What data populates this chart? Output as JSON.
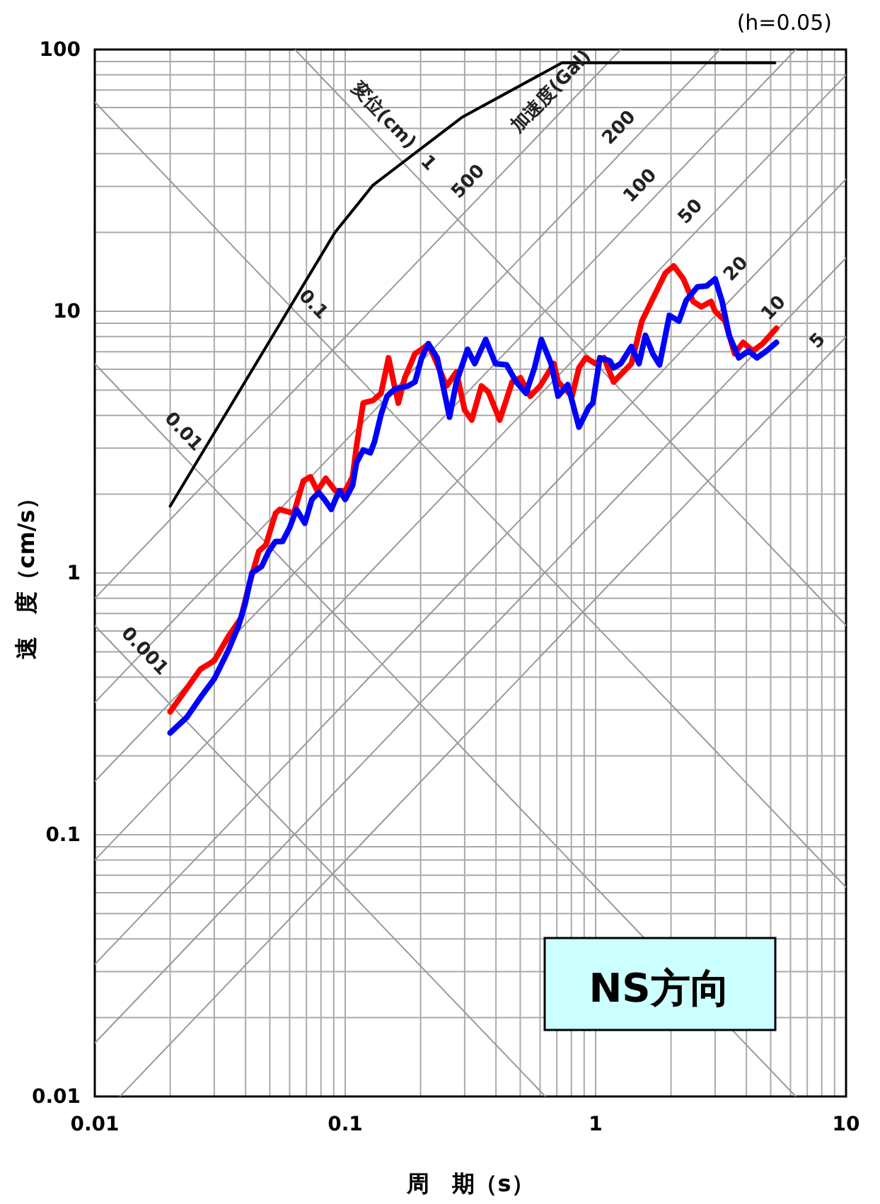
{
  "chart_data": {
    "type": "line",
    "xlabel": "周　期（s）",
    "ylabel": "速　度（cm/s）",
    "log": "xy",
    "grid": true,
    "xlim": [
      0.01,
      10
    ],
    "xticks": [
      0.01,
      0.1,
      1,
      10
    ],
    "ylim": [
      0.01,
      100
    ],
    "yticks": [
      0.01,
      0.1,
      1,
      10,
      100
    ],
    "series": [
      {
        "color": "#999999",
        "x": [
          0.01,
          0.63
        ],
        "values": [
          0.63,
          0.01
        ]
      },
      {
        "color": "#999999",
        "x": [
          0.01,
          6.3
        ],
        "values": [
          6.3,
          0.01
        ]
      },
      {
        "color": "#999999",
        "x": [
          0.01,
          10
        ],
        "values": [
          63,
          0.063
        ]
      },
      {
        "color": "#999999",
        "x": [
          0.063,
          10
        ],
        "values": [
          100,
          0.63
        ]
      },
      {
        "color": "#999999",
        "x": [
          0.01,
          1.26
        ],
        "values": [
          0.8,
          100
        ]
      },
      {
        "color": "#999999",
        "x": [
          0.01,
          3.14
        ],
        "values": [
          0.32,
          100
        ]
      },
      {
        "color": "#999999",
        "x": [
          0.01,
          6.3
        ],
        "values": [
          0.16,
          100
        ]
      },
      {
        "color": "#999999",
        "x": [
          0.01,
          10
        ],
        "values": [
          0.08,
          80
        ]
      },
      {
        "color": "#999999",
        "x": [
          0.01,
          10
        ],
        "values": [
          0.032,
          32
        ]
      },
      {
        "color": "#999999",
        "x": [
          0.01,
          10
        ],
        "values": [
          0.016,
          16
        ]
      },
      {
        "color": "#999999",
        "x": [
          0.0126,
          10
        ],
        "values": [
          0.01,
          8
        ]
      },
      {
        "color": "#000000",
        "x": [
          0.02,
          0.091,
          0.129,
          0.292,
          0.734,
          5.2
        ],
        "values": [
          1.8,
          20,
          30.3,
          55,
          89,
          89
        ]
      },
      {
        "color": "#ff0000",
        "x": [
          0.02,
          0.0264,
          0.03,
          0.0341,
          0.0383,
          0.0414,
          0.0452,
          0.0482,
          0.0527,
          0.0548,
          0.0623,
          0.0681,
          0.0726,
          0.0774,
          0.0836,
          0.0914,
          0.1,
          0.107,
          0.111,
          0.118,
          0.129,
          0.139,
          0.149,
          0.156,
          0.163,
          0.173,
          0.19,
          0.202,
          0.215,
          0.254,
          0.278,
          0.3,
          0.32,
          0.35,
          0.373,
          0.414,
          0.464,
          0.501,
          0.548,
          0.6,
          0.681,
          0.708,
          0.805,
          0.858,
          0.914,
          1.0,
          1.08,
          1.18,
          1.29,
          1.39,
          1.53,
          1.67,
          1.9,
          2.05,
          2.24,
          2.45,
          2.64,
          2.89,
          3.0,
          3.29,
          3.59,
          3.88,
          4.25,
          4.64,
          5.27
        ],
        "values": [
          0.295,
          0.429,
          0.462,
          0.571,
          0.671,
          0.906,
          1.21,
          1.28,
          1.69,
          1.75,
          1.69,
          2.25,
          2.33,
          2.06,
          2.3,
          2.06,
          2.06,
          2.33,
          3.06,
          4.46,
          4.56,
          4.86,
          6.64,
          5.37,
          4.46,
          5.57,
          6.89,
          7.15,
          7.51,
          5.18,
          5.86,
          4.19,
          3.84,
          5.18,
          4.92,
          3.84,
          5.37,
          5.57,
          4.74,
          5.18,
          6.31,
          5.37,
          4.74,
          6.08,
          6.64,
          6.31,
          6.64,
          5.37,
          5.86,
          6.31,
          9.17,
          10.9,
          14.0,
          14.9,
          13.3,
          10.9,
          10.4,
          10.9,
          10.0,
          9.17,
          6.89,
          7.6,
          7.06,
          7.51,
          8.61
        ]
      },
      {
        "color": "#0000ff",
        "x": [
          0.02,
          0.0233,
          0.0264,
          0.03,
          0.0341,
          0.0374,
          0.0398,
          0.0424,
          0.0464,
          0.0495,
          0.0527,
          0.0562,
          0.06,
          0.0639,
          0.069,
          0.0736,
          0.0784,
          0.0826,
          0.088,
          0.0914,
          0.095,
          0.1,
          0.107,
          0.111,
          0.118,
          0.126,
          0.131,
          0.139,
          0.147,
          0.158,
          0.178,
          0.19,
          0.202,
          0.215,
          0.233,
          0.261,
          0.278,
          0.308,
          0.329,
          0.364,
          0.398,
          0.441,
          0.482,
          0.527,
          0.57,
          0.607,
          0.664,
          0.708,
          0.774,
          0.858,
          0.938,
          0.975,
          1.04,
          1.14,
          1.18,
          1.26,
          1.39,
          1.49,
          1.58,
          1.69,
          1.8,
          1.97,
          2.15,
          2.3,
          2.55,
          2.78,
          3.0,
          3.2,
          3.41,
          3.73,
          4.08,
          4.41,
          4.82,
          5.27
        ],
        "values": [
          0.245,
          0.281,
          0.334,
          0.394,
          0.505,
          0.624,
          0.76,
          1.0,
          1.06,
          1.21,
          1.32,
          1.32,
          1.49,
          1.75,
          1.55,
          1.91,
          2.03,
          1.91,
          1.75,
          1.91,
          2.06,
          1.91,
          2.16,
          2.64,
          2.95,
          2.88,
          3.18,
          4.03,
          4.74,
          5.05,
          5.18,
          5.37,
          6.64,
          7.51,
          6.64,
          3.94,
          5.37,
          7.15,
          6.31,
          7.8,
          6.31,
          6.24,
          5.37,
          4.86,
          6.08,
          7.8,
          6.31,
          4.74,
          5.24,
          3.61,
          4.29,
          4.46,
          6.64,
          6.47,
          6.08,
          6.31,
          7.33,
          6.31,
          8.09,
          6.89,
          6.24,
          9.64,
          9.17,
          11.0,
          12.4,
          12.5,
          13.3,
          10.9,
          8.09,
          6.64,
          7.06,
          6.64,
          7.06,
          7.6
        ]
      }
    ],
    "annotations": [
      "(h=0.05)",
      "NS方向",
      {
        "text": "0.001",
        "x": 0.014,
        "y": 0.45
      },
      {
        "text": "0.01",
        "x": 0.02,
        "y": 3.1
      },
      {
        "text": "0.1",
        "x": 0.066,
        "y": 9.5
      },
      {
        "text": "1",
        "x": 0.19,
        "y": 33
      },
      {
        "text": "変位(cm)",
        "x": 0.126,
        "y": 50
      },
      {
        "text": "500",
        "x": 0.35,
        "y": 28
      },
      {
        "text": "加速度(Gal)",
        "x": 0.75,
        "y": 62
      },
      {
        "text": "200",
        "x": 1.4,
        "y": 45
      },
      {
        "text": "100",
        "x": 1.7,
        "y": 27
      },
      {
        "text": "50",
        "x": 2.7,
        "y": 21.5
      },
      {
        "text": "20",
        "x": 4.1,
        "y": 13
      },
      {
        "text": "10",
        "x": 5.8,
        "y": 9.2
      },
      {
        "text": "5",
        "x": 8.7,
        "y": 6.9
      }
    ]
  }
}
